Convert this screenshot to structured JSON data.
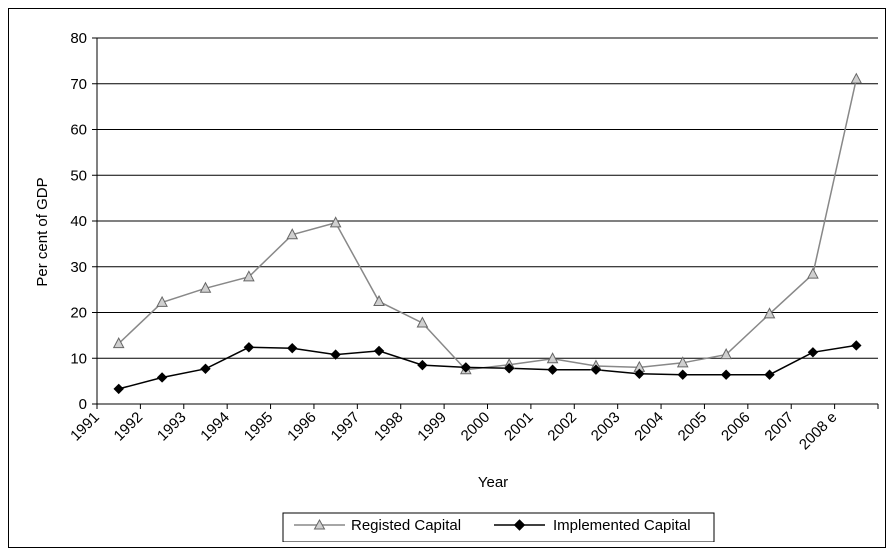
{
  "chart_data": {
    "type": "line",
    "title": "",
    "xlabel": "Year",
    "ylabel": "Per cent of GDP",
    "ylim": [
      0,
      80
    ],
    "yticks": [
      0,
      10,
      20,
      30,
      40,
      50,
      60,
      70,
      80
    ],
    "categories": [
      "1991",
      "1992",
      "1993",
      "1994",
      "1995",
      "1996",
      "1997",
      "1998",
      "1999",
      "2000",
      "2001",
      "2002",
      "2003",
      "2004",
      "2005",
      "2006",
      "2007",
      "2008 e"
    ],
    "grid": "horizontal",
    "legend_position": "bottom",
    "series": [
      {
        "name": "Registed Capital",
        "marker": "triangle",
        "color": "#888888",
        "values": [
          13.2,
          22.2,
          25.3,
          27.8,
          37.0,
          39.6,
          22.4,
          17.7,
          7.5,
          8.6,
          9.9,
          8.3,
          8.0,
          9.0,
          10.8,
          19.7,
          28.4,
          71.0
        ]
      },
      {
        "name": "Implemented Capital",
        "marker": "diamond",
        "color": "#000000",
        "values": [
          3.3,
          5.8,
          7.7,
          12.4,
          12.2,
          10.8,
          11.6,
          8.5,
          8.0,
          7.8,
          7.5,
          7.5,
          6.6,
          6.4,
          6.4,
          6.4,
          11.3,
          12.8
        ]
      }
    ]
  }
}
